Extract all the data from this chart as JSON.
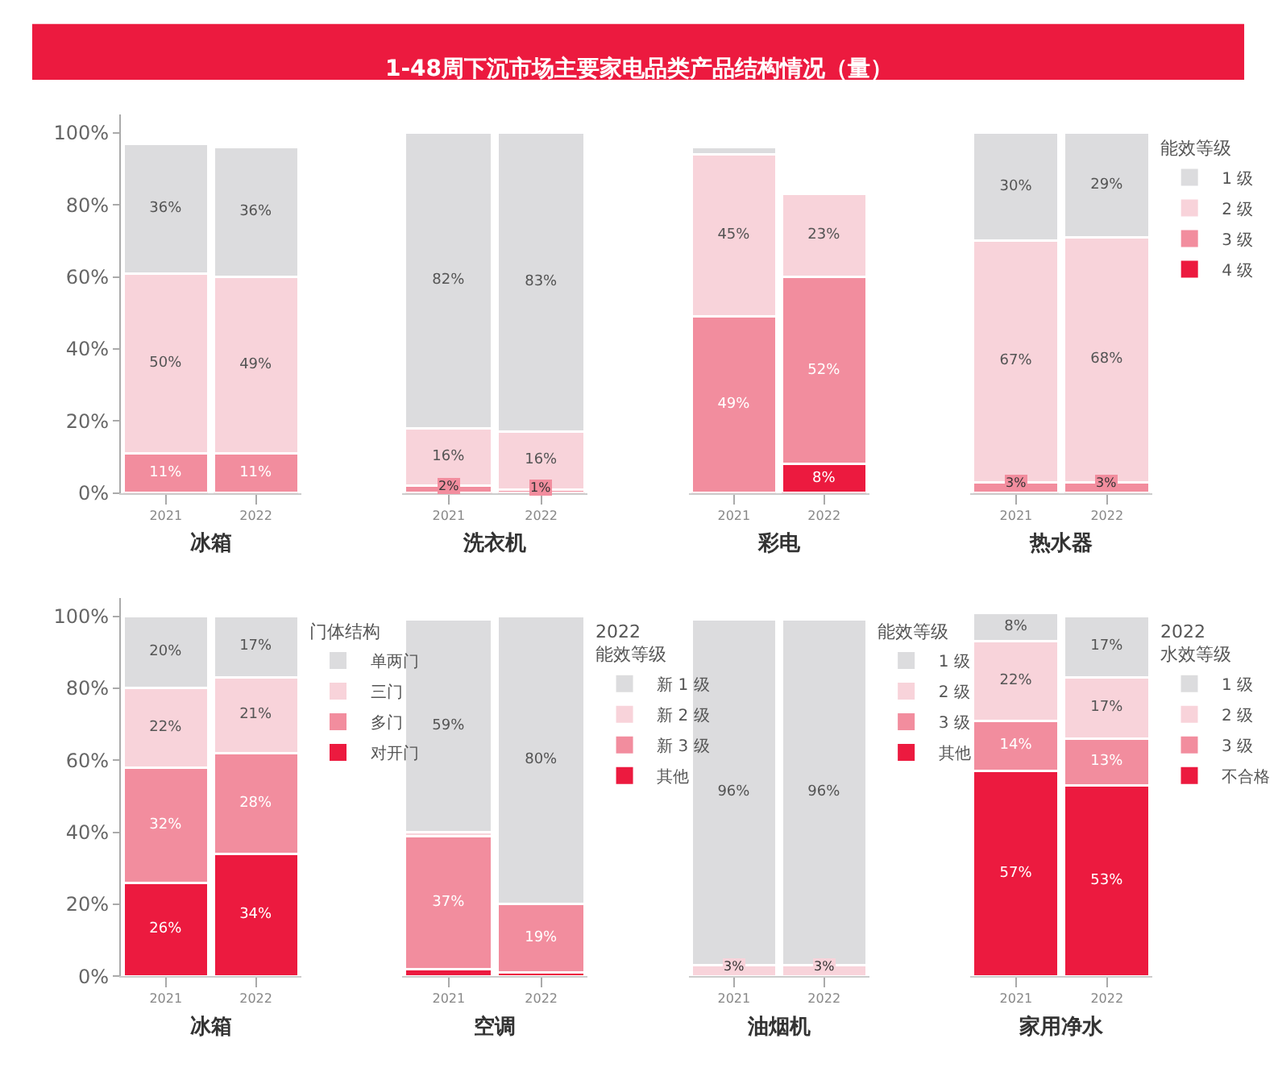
{
  "chart_data": [
    {
      "type": "other",
      "title": "1-48周下沉市场主要家电品类产品结构情况（量）"
    },
    {
      "type": "bar",
      "xlabel": "冰箱",
      "categories": [
        "2021",
        "2022"
      ],
      "stacked": true,
      "ylim": [
        0,
        105
      ],
      "yticks": [
        {
          "value": 0,
          "label": "0%"
        },
        {
          "value": 20,
          "label": "20%"
        },
        {
          "value": 40,
          "label": "40%"
        },
        {
          "value": 60,
          "label": "60%"
        },
        {
          "value": 80,
          "label": "80%"
        },
        {
          "value": 100,
          "label": "100%"
        }
      ],
      "series": [
        {
          "color": "#f28d9e",
          "values": [
            11,
            11
          ],
          "value_labels": [
            "11%",
            "11%"
          ]
        },
        {
          "color": "#f8d3da",
          "values": [
            50,
            49
          ],
          "value_labels": [
            "50%",
            "49%"
          ]
        },
        {
          "color": "#dcdcde",
          "values": [
            36,
            36
          ],
          "value_labels": [
            "36%",
            "36%"
          ]
        }
      ]
    },
    {
      "type": "bar",
      "xlabel": "洗衣机",
      "categories": [
        "2021",
        "2022"
      ],
      "stacked": true,
      "tick_labels": "x",
      "series": [
        {
          "color": "#f28d9e",
          "values": [
            2,
            1
          ],
          "value_labels": [
            "2%",
            "1%"
          ]
        },
        {
          "color": "#f8d3da",
          "values": [
            16,
            16
          ],
          "value_labels": [
            "16%",
            "16%"
          ]
        },
        {
          "color": "#dcdcde",
          "values": [
            82,
            83
          ],
          "value_labels": [
            "82%",
            "83%"
          ]
        }
      ]
    },
    {
      "type": "bar",
      "xlabel": "彩电",
      "categories": [
        "2021",
        "2022"
      ],
      "stacked": true,
      "tick_labels": "x",
      "series": [
        {
          "color": "#ec1a3f",
          "values": [
            null,
            8
          ],
          "value_labels": [
            null,
            "8%"
          ]
        },
        {
          "color": "#f28d9e",
          "values": [
            49,
            52
          ],
          "value_labels": [
            "49%",
            "52%"
          ]
        },
        {
          "color": "#f8d3da",
          "values": [
            45,
            23
          ],
          "value_labels": [
            "45%",
            "23%"
          ]
        },
        {
          "color": "#dcdcde",
          "values": [
            2,
            null
          ],
          "value_labels": [
            null,
            null
          ]
        }
      ]
    },
    {
      "type": "bar",
      "xlabel": "热水器",
      "categories": [
        "2021",
        "2022"
      ],
      "stacked": true,
      "tick_labels": "x",
      "legend": "right",
      "legend_title": "能效等级",
      "series": [
        {
          "name": "4 级",
          "color": "#ec1a3f",
          "values": [
            null,
            null
          ],
          "value_labels": [
            null,
            null
          ]
        },
        {
          "name": "3 级",
          "color": "#f28d9e",
          "values": [
            3,
            3
          ],
          "value_labels": [
            "3%",
            "3%"
          ]
        },
        {
          "name": "2 级",
          "color": "#f8d3da",
          "values": [
            67,
            68
          ],
          "value_labels": [
            "67%",
            "68%"
          ]
        },
        {
          "name": "1 级",
          "color": "#dcdcde",
          "values": [
            30,
            29
          ],
          "value_labels": [
            "30%",
            "29%"
          ]
        }
      ]
    },
    {
      "type": "bar",
      "xlabel": "冰箱",
      "categories": [
        "2021",
        "2022"
      ],
      "stacked": true,
      "ylim": [
        0,
        105
      ],
      "yticks": [
        {
          "value": 0,
          "label": "0%"
        },
        {
          "value": 20,
          "label": "20%"
        },
        {
          "value": 40,
          "label": "40%"
        },
        {
          "value": 60,
          "label": "60%"
        },
        {
          "value": 80,
          "label": "80%"
        },
        {
          "value": 100,
          "label": "100%"
        }
      ],
      "legend": "right",
      "legend_title": "门体结构",
      "series": [
        {
          "name": "对开门",
          "color": "#ec1a3f",
          "values": [
            26,
            34
          ],
          "value_labels": [
            "26%",
            "34%"
          ]
        },
        {
          "name": "多门",
          "color": "#f28d9e",
          "values": [
            32,
            28
          ],
          "value_labels": [
            "32%",
            "28%"
          ]
        },
        {
          "name": "三门",
          "color": "#f8d3da",
          "values": [
            22,
            21
          ],
          "value_labels": [
            "22%",
            "21%"
          ]
        },
        {
          "name": "单两门",
          "color": "#dcdcde",
          "values": [
            20,
            17
          ],
          "value_labels": [
            "20%",
            "17%"
          ]
        }
      ]
    },
    {
      "type": "bar",
      "xlabel": "空调",
      "categories": [
        "2021",
        "2022"
      ],
      "stacked": true,
      "tick_labels": "x",
      "legend": "right",
      "legend_title": "2022\n能效等级",
      "series": [
        {
          "name": "其他",
          "color": "#ec1a3f",
          "values": [
            2,
            1
          ],
          "value_labels": [
            null,
            null
          ]
        },
        {
          "name": "新 3 级",
          "color": "#f28d9e",
          "values": [
            37,
            19
          ],
          "value_labels": [
            "37%",
            "19%"
          ]
        },
        {
          "name": "新 2 级",
          "color": "#f8d3da",
          "values": [
            1,
            null
          ],
          "value_labels": [
            null,
            null
          ]
        },
        {
          "name": "新 1 级",
          "color": "#dcdcde",
          "values": [
            59,
            80
          ],
          "value_labels": [
            "59%",
            "80%"
          ]
        }
      ]
    },
    {
      "type": "bar",
      "xlabel": "油烟机",
      "categories": [
        "2021",
        "2022"
      ],
      "stacked": true,
      "tick_labels": "x",
      "legend": "right",
      "legend_title": "能效等级",
      "series": [
        {
          "name": "其他",
          "color": "#ec1a3f",
          "values": [
            null,
            null
          ],
          "value_labels": [
            null,
            null
          ]
        },
        {
          "name": "3 级",
          "color": "#f28d9e",
          "values": [
            null,
            null
          ],
          "value_labels": [
            null,
            null
          ]
        },
        {
          "name": "2 级",
          "color": "#f8d3da",
          "values": [
            3,
            3
          ],
          "value_labels": [
            "3%",
            "3%"
          ]
        },
        {
          "name": "1 级",
          "color": "#dcdcde",
          "values": [
            96,
            96
          ],
          "value_labels": [
            "96%",
            "96%"
          ]
        }
      ]
    },
    {
      "type": "bar",
      "xlabel": "家用净水",
      "categories": [
        "2021",
        "2022"
      ],
      "stacked": true,
      "tick_labels": "x",
      "legend": "right",
      "legend_title": "2022\n水效等级",
      "series": [
        {
          "name": "不合格",
          "color": "#ec1a3f",
          "values": [
            57,
            53
          ],
          "value_labels": [
            "57%",
            "53%"
          ]
        },
        {
          "name": "3 级",
          "color": "#f28d9e",
          "values": [
            14,
            13
          ],
          "value_labels": [
            "14%",
            "13%"
          ]
        },
        {
          "name": "2 级",
          "color": "#f8d3da",
          "values": [
            22,
            17
          ],
          "value_labels": [
            "22%",
            "17%"
          ]
        },
        {
          "name": "1 级",
          "color": "#dcdcde",
          "values": [
            8,
            17
          ],
          "value_labels": [
            "8%",
            "17%"
          ]
        }
      ]
    }
  ]
}
